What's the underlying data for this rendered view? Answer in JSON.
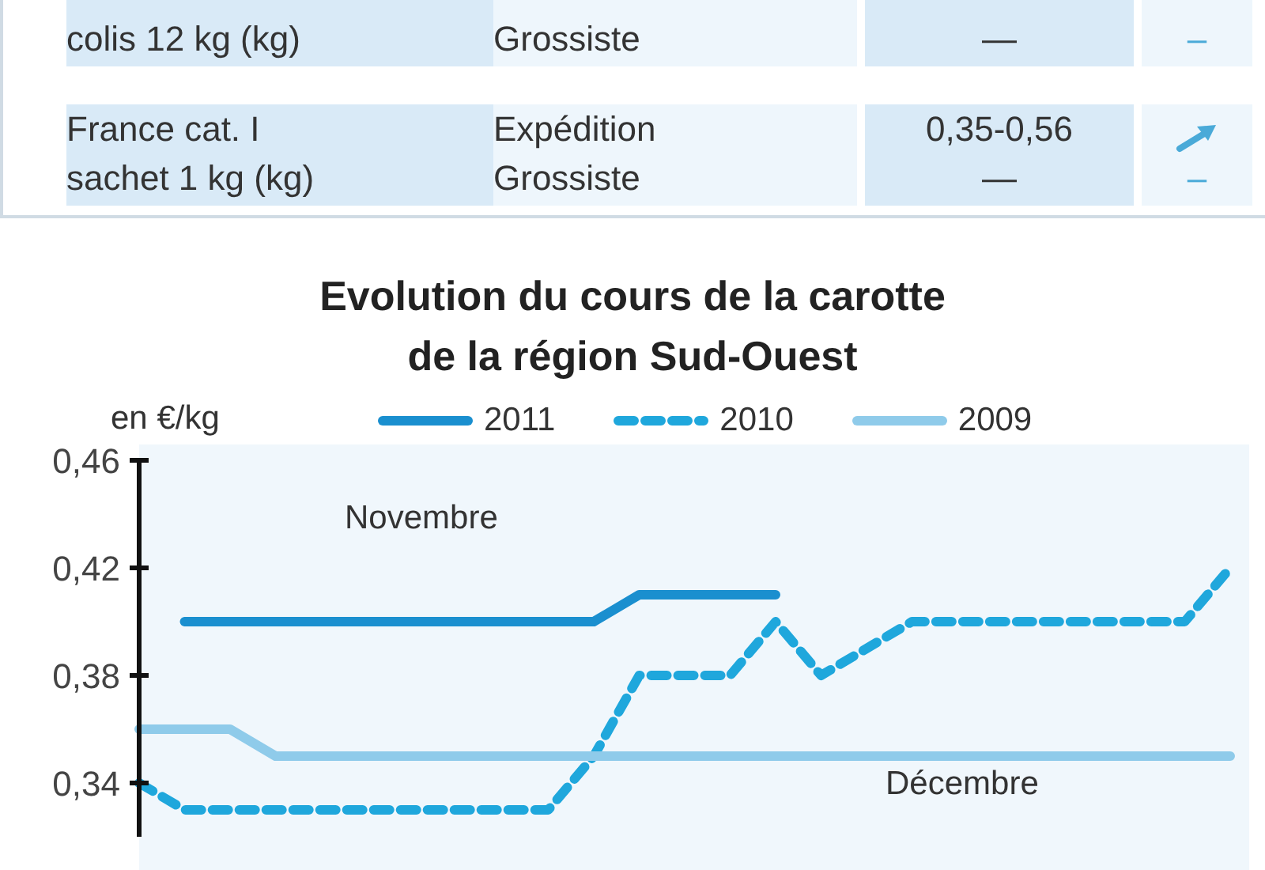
{
  "chart_data": [
    {
      "type": "other",
      "annotations": [
        "colis 12 kg (kg)",
        "Grossiste",
        "—",
        "–",
        "France cat. I\nsachet 1 kg (kg)",
        "Expédition\nGrossiste",
        "0,35-0,56\n—",
        "–"
      ]
    },
    {
      "type": "line",
      "title": "Evolution du cours de la carotte\nde la région Sud-Ouest",
      "ylabel": "en €/kg",
      "categories": [
        null,
        null,
        null,
        null,
        null,
        null,
        null,
        null,
        null,
        null,
        null,
        null,
        null,
        null,
        null,
        null,
        null,
        null,
        null,
        null,
        null,
        null,
        null,
        null,
        null
      ],
      "series": [
        {
          "name": "2011",
          "color": "#1a8fcf",
          "line_style": "solid",
          "values": [
            null,
            0.4,
            0.4,
            0.4,
            0.4,
            0.4,
            0.4,
            0.4,
            0.4,
            0.4,
            0.4,
            0.41,
            0.41,
            0.41,
            0.41,
            null,
            null,
            null,
            null,
            null,
            null,
            null,
            null,
            null,
            null
          ]
        },
        {
          "name": "2010",
          "color": "#1fa7dc",
          "line_style": "dashed",
          "values": [
            0.34,
            0.33,
            0.33,
            0.33,
            0.33,
            0.33,
            0.33,
            0.33,
            0.33,
            0.33,
            0.35,
            0.38,
            0.38,
            0.38,
            0.4,
            0.38,
            0.39,
            0.4,
            0.4,
            0.4,
            0.4,
            0.4,
            0.4,
            0.4,
            0.42
          ]
        },
        {
          "name": "2009",
          "color": "#8fcbea",
          "line_style": "solid",
          "values": [
            0.36,
            0.36,
            0.36,
            0.35,
            0.35,
            0.35,
            0.35,
            0.35,
            0.35,
            0.35,
            0.35,
            0.35,
            0.35,
            0.35,
            0.35,
            0.35,
            0.35,
            0.35,
            0.35,
            0.35,
            0.35,
            0.35,
            0.35,
            0.35,
            0.35
          ]
        }
      ],
      "ylim": [
        0.32,
        0.46
      ],
      "yticks": [
        {
          "value": 0.34,
          "label": "0,34"
        },
        {
          "value": 0.38,
          "label": "0,38"
        },
        {
          "value": 0.42,
          "label": "0,42"
        },
        {
          "value": 0.46,
          "label": "0,46"
        }
      ],
      "tick_labels": "y",
      "legend": "top",
      "marker": "none",
      "annotations": [
        "Novembre",
        "Décembre"
      ]
    }
  ]
}
